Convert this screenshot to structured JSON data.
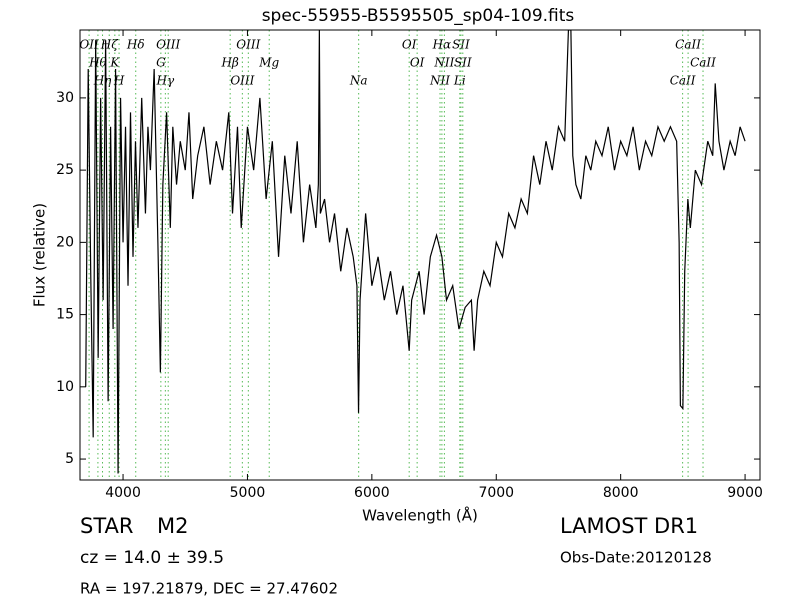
{
  "chart_data": {
    "type": "line",
    "title": "spec-55955-B5595505_sp04-109.fits",
    "x_label": "Wavelength (Å)",
    "y_label": "Flux (relative)",
    "xlim": [
      3654,
      9120
    ],
    "ylim": [
      3.55,
      34.7
    ],
    "xticks": [
      4000,
      5000,
      6000,
      7000,
      8000,
      9000
    ],
    "yticks": [
      5,
      10,
      15,
      20,
      25,
      30
    ],
    "x": [
      3700,
      3720,
      3740,
      3760,
      3780,
      3800,
      3820,
      3840,
      3860,
      3880,
      3900,
      3920,
      3940,
      3960,
      3980,
      4000,
      4020,
      4040,
      4060,
      4080,
      4100,
      4120,
      4150,
      4180,
      4200,
      4220,
      4250,
      4280,
      4300,
      4320,
      4350,
      4380,
      4400,
      4430,
      4460,
      4500,
      4530,
      4560,
      4600,
      4650,
      4700,
      4750,
      4800,
      4850,
      4880,
      4920,
      4950,
      5000,
      5050,
      5100,
      5150,
      5200,
      5250,
      5300,
      5350,
      5400,
      5450,
      5500,
      5550,
      5570,
      5578,
      5586,
      5620,
      5660,
      5700,
      5750,
      5800,
      5850,
      5880,
      5893,
      5905,
      5950,
      6000,
      6050,
      6100,
      6150,
      6200,
      6250,
      6300,
      6320,
      6380,
      6420,
      6470,
      6520,
      6563,
      6600,
      6650,
      6700,
      6750,
      6800,
      6822,
      6850,
      6900,
      6950,
      7000,
      7050,
      7100,
      7150,
      7200,
      7250,
      7300,
      7350,
      7400,
      7450,
      7500,
      7550,
      7580,
      7600,
      7615,
      7640,
      7680,
      7720,
      7760,
      7800,
      7850,
      7900,
      7950,
      8000,
      8050,
      8100,
      8150,
      8200,
      8250,
      8300,
      8350,
      8400,
      8450,
      8470,
      8480,
      8500,
      8515,
      8540,
      8560,
      8600,
      8650,
      8700,
      8740,
      8760,
      8790,
      8830,
      8880,
      8920,
      8960,
      9000
    ],
    "series": [
      {
        "color": "#000000",
        "values": [
          10,
          32,
          18,
          6.5,
          34,
          12,
          30,
          16,
          34,
          9,
          28,
          14,
          32,
          4,
          30,
          20,
          28,
          17,
          29,
          19,
          27,
          21,
          30,
          22,
          28,
          25,
          32,
          20,
          11,
          24,
          29,
          21,
          28,
          24,
          27,
          25,
          29,
          23,
          26,
          28,
          24,
          27,
          25,
          29,
          22,
          28,
          21,
          28,
          25,
          30,
          23,
          27,
          19,
          26,
          22,
          27,
          20,
          24,
          21,
          24,
          34.7,
          22,
          23,
          20,
          22,
          18,
          21,
          19,
          17,
          8.2,
          16,
          22,
          17,
          19,
          16,
          18,
          15,
          17,
          12.5,
          16,
          18,
          15,
          19,
          20.5,
          19,
          16,
          17,
          14,
          15.5,
          16,
          12.5,
          16,
          18,
          17,
          20,
          19,
          22,
          21,
          23,
          22,
          26,
          24,
          27,
          25,
          28,
          27,
          34.7,
          34.7,
          26,
          24,
          23,
          26,
          25,
          27,
          26,
          28,
          25,
          27,
          26,
          28,
          25,
          27,
          26,
          28,
          27,
          28,
          27,
          20,
          8.7,
          8.5,
          18,
          23,
          21,
          25,
          24,
          27,
          26,
          31,
          27,
          25,
          27,
          26,
          28,
          27
        ]
      }
    ],
    "line_color": "#55bb55",
    "spectral_lines": [
      {
        "label": "OII",
        "wavelength": 3727
      },
      {
        "label": "Hθ",
        "wavelength": 3798
      },
      {
        "label": "Hη",
        "wavelength": 3835
      },
      {
        "label": "Hζ",
        "wavelength": 3889
      },
      {
        "label": "K",
        "wavelength": 3934
      },
      {
        "label": "H",
        "wavelength": 3968
      },
      {
        "label": "Hδ",
        "wavelength": 4102
      },
      {
        "label": "G",
        "wavelength": 4304
      },
      {
        "label": "Hγ",
        "wavelength": 4340
      },
      {
        "label": "OIII",
        "wavelength": 4363
      },
      {
        "label": "Hβ",
        "wavelength": 4861
      },
      {
        "label": "OIII",
        "wavelength": 4959
      },
      {
        "label": "OIII",
        "wavelength": 5007
      },
      {
        "label": "Mg",
        "wavelength": 5175
      },
      {
        "label": "Na",
        "wavelength": 5894
      },
      {
        "label": "OI",
        "wavelength": 6300
      },
      {
        "label": "OI",
        "wavelength": 6364
      },
      {
        "label": "NII",
        "wavelength": 6548
      },
      {
        "label": "Hα",
        "wavelength": 6563
      },
      {
        "label": "NII",
        "wavelength": 6583
      },
      {
        "label": "Li",
        "wavelength": 6707
      },
      {
        "label": "SII",
        "wavelength": 6716
      },
      {
        "label": "SII",
        "wavelength": 6731
      },
      {
        "label": "CaII",
        "wavelength": 8498
      },
      {
        "label": "CaII",
        "wavelength": 8542
      },
      {
        "label": "CaII",
        "wavelength": 8662
      }
    ],
    "info": {
      "class": "STAR",
      "subclass": "M2",
      "redshift": "cz = 14.0 ± 39.5",
      "coords": "RA = 197.21879, DEC = 27.47602",
      "survey": "LAMOST DR1",
      "obs_date": "Obs-Date:20120128"
    }
  }
}
